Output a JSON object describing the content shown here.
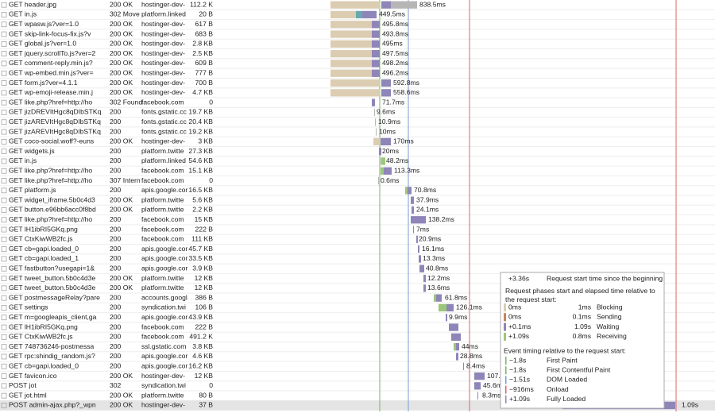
{
  "rows": [
    {
      "request": "GET header.jpg",
      "status": "200 OK",
      "domain": "hostinger-dev-",
      "size": "112.2 K",
      "duration": "838.5ms"
    },
    {
      "request": "GET in.js",
      "status": "302 Move",
      "domain": "platform.linked",
      "size": "20 B",
      "duration": "449.5ms"
    },
    {
      "request": "GET wpasw.js?ver=1.0",
      "status": "200 OK",
      "domain": "hostinger-dev-",
      "size": "617 B",
      "duration": "495.8ms"
    },
    {
      "request": "GET skip-link-focus-fix.js?v",
      "status": "200 OK",
      "domain": "hostinger-dev-",
      "size": "683 B",
      "duration": "493.8ms"
    },
    {
      "request": "GET global.js?ver=1.0",
      "status": "200 OK",
      "domain": "hostinger-dev-",
      "size": "2.8 KB",
      "duration": "495ms"
    },
    {
      "request": "GET jquery.scrollTo.js?ver=2",
      "status": "200 OK",
      "domain": "hostinger-dev-",
      "size": "2.5 KB",
      "duration": "497.5ms"
    },
    {
      "request": "GET comment-reply.min.js?",
      "status": "200 OK",
      "domain": "hostinger-dev-",
      "size": "609 B",
      "duration": "498.2ms"
    },
    {
      "request": "GET wp-embed.min.js?ver=",
      "status": "200 OK",
      "domain": "hostinger-dev-",
      "size": "777 B",
      "duration": "496.2ms"
    },
    {
      "request": "GET form.js?ver=4.1.1",
      "status": "200 OK",
      "domain": "hostinger-dev-",
      "size": "700 B",
      "duration": "592.8ms"
    },
    {
      "request": "GET wp-emoji-release.min.j",
      "status": "200 OK",
      "domain": "hostinger-dev-",
      "size": "4.7 KB",
      "duration": "558.6ms"
    },
    {
      "request": "GET like.php?href=http://ho",
      "status": "302 Found",
      "domain": "facebook.com",
      "size": "0",
      "duration": "71.7ms"
    },
    {
      "request": "GET jizDREVItHgc8qDIbSTKq",
      "status": "200",
      "domain": "fonts.gstatic.cc",
      "size": "19.7 KB",
      "duration": "9.6ms"
    },
    {
      "request": "GET jizAREVItHgc8qDIbSTKq",
      "status": "200",
      "domain": "fonts.gstatic.cc",
      "size": "20.4 KB",
      "duration": "10.9ms"
    },
    {
      "request": "GET jizAREVItHgc8qDIbSTKq",
      "status": "200",
      "domain": "fonts.gstatic.cc",
      "size": "19.2 KB",
      "duration": "10ms"
    },
    {
      "request": "GET coco-social.woff?-euns",
      "status": "200 OK",
      "domain": "hostinger-dev-",
      "size": "3 KB",
      "duration": "170ms"
    },
    {
      "request": "GET widgets.js",
      "status": "200",
      "domain": "platform.twitte",
      "size": "27.3 KB",
      "duration": "20ms"
    },
    {
      "request": "GET in.js",
      "status": "200",
      "domain": "platform.linked",
      "size": "54.6 KB",
      "duration": "48.2ms"
    },
    {
      "request": "GET like.php?href=http://ho",
      "status": "200",
      "domain": "facebook.com",
      "size": "15.1 KB",
      "duration": "113.3ms"
    },
    {
      "request": "GET like.php?href=http://ho",
      "status": "307 Intern",
      "domain": "facebook.com",
      "size": "0",
      "duration": "0.6ms"
    },
    {
      "request": "GET platform.js",
      "status": "200",
      "domain": "apis.google.cor",
      "size": "16.5 KB",
      "duration": "70.8ms"
    },
    {
      "request": "GET widget_iframe.5b0c4d3",
      "status": "200 OK",
      "domain": "platform.twitte",
      "size": "5.6 KB",
      "duration": "37.9ms"
    },
    {
      "request": "GET button.e96bb6acc0f8bd",
      "status": "200 OK",
      "domain": "platform.twitte",
      "size": "2.2 KB",
      "duration": "24.1ms"
    },
    {
      "request": "GET like.php?href=http://ho",
      "status": "200",
      "domain": "facebook.com",
      "size": "15 KB",
      "duration": "138.2ms"
    },
    {
      "request": "GET lH1ibRI5GKq.png",
      "status": "200",
      "domain": "facebook.com",
      "size": "222 B",
      "duration": "7ms"
    },
    {
      "request": "GET CtxKiwWB2fc.js",
      "status": "200",
      "domain": "facebook.com",
      "size": "111 KB",
      "duration": "20.9ms"
    },
    {
      "request": "GET cb=gapi.loaded_0",
      "status": "200",
      "domain": "apis.google.cor",
      "size": "45.7 KB",
      "duration": "16.1ms"
    },
    {
      "request": "GET cb=gapi.loaded_1",
      "status": "200",
      "domain": "apis.google.cor",
      "size": "33.5 KB",
      "duration": "13.3ms"
    },
    {
      "request": "GET fastbutton?usegapi=1&",
      "status": "200",
      "domain": "apis.google.cor",
      "size": "3.9 KB",
      "duration": "40.8ms"
    },
    {
      "request": "GET tweet_button.5b0c4d3e",
      "status": "200 OK",
      "domain": "platform.twitte",
      "size": "12 KB",
      "duration": "12.2ms"
    },
    {
      "request": "GET tweet_button.5b0c4d3e",
      "status": "200 OK",
      "domain": "platform.twitte",
      "size": "12 KB",
      "duration": "13.6ms"
    },
    {
      "request": "GET postmessageRelay?pare",
      "status": "200",
      "domain": "accounts.googl",
      "size": "386 B",
      "duration": "61.8ms"
    },
    {
      "request": "GET settings",
      "status": "200",
      "domain": "syndication.twi",
      "size": "106 B",
      "duration": "126.1ms"
    },
    {
      "request": "GET m=googleapis_client,ga",
      "status": "200",
      "domain": "apis.google.cor",
      "size": "43.9 KB",
      "duration": "9.9ms"
    },
    {
      "request": "GET lH1ibRI5GKq.png",
      "status": "200",
      "domain": "facebook.com",
      "size": "222 B"
    },
    {
      "request": "GET CtxKiwWB2fc.js",
      "status": "200",
      "domain": "facebook.com",
      "size": "491.2 K"
    },
    {
      "request": "GET 748736246-postmessa",
      "status": "200",
      "domain": "ssl.gstatic.com",
      "size": "3.8 KB",
      "duration": "44ms"
    },
    {
      "request": "GET rpc:shindig_random.js?",
      "status": "200",
      "domain": "apis.google.cor",
      "size": "4.6 KB",
      "duration": "28.8ms"
    },
    {
      "request": "GET cb=gapi.loaded_0",
      "status": "200",
      "domain": "apis.google.cor",
      "size": "16.2 KB",
      "duration": "8.4ms"
    },
    {
      "request": "GET favicon.ico",
      "status": "200 OK",
      "domain": "hostinger-dev-",
      "size": "12 KB",
      "duration": "107."
    },
    {
      "request": "POST jot",
      "status": "302",
      "domain": "syndication.twi",
      "size": "0",
      "duration": "45.6ms"
    },
    {
      "request": "GET jot.html",
      "status": "200 OK",
      "domain": "platform.twitte",
      "size": "80 B",
      "duration": "8.3ms"
    },
    {
      "request": "POST admin-ajax.php?_wpn",
      "status": "200 OK",
      "domain": "hostinger-dev-",
      "size": "37 B",
      "duration": "1.09s"
    }
  ],
  "tooltip": {
    "start_time": "+3.36s",
    "start_label": "Request start time since the beginning",
    "phases_heading": "Request phases start and elapsed time relative to the request start:",
    "phases": [
      {
        "start": "0ms",
        "elapsed": "1ms",
        "name": "Blocking"
      },
      {
        "start": "0ms",
        "elapsed": "0.1ms",
        "name": "Sending"
      },
      {
        "start": "+0.1ms",
        "elapsed": "1.09s",
        "name": "Waiting"
      },
      {
        "start": "+1.09s",
        "elapsed": "0.8ms",
        "name": "Receiving"
      }
    ],
    "events_heading": "Event timing relative to the request start:",
    "events": [
      {
        "time": "−1.8s",
        "name": "First Paint"
      },
      {
        "time": "−1.8s",
        "name": "First Contentful Paint"
      },
      {
        "time": "−1.51s",
        "name": "DOM Loaded"
      },
      {
        "time": "−916ms",
        "name": "Onload"
      },
      {
        "time": "+1.09s",
        "name": "Fully Loaded"
      }
    ]
  }
}
